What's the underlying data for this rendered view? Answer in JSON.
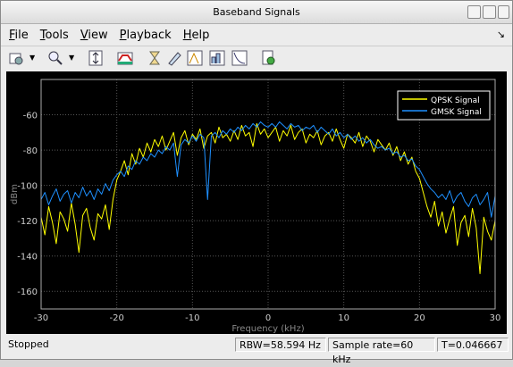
{
  "window": {
    "title": "Baseband Signals"
  },
  "menu": [
    "File",
    "Tools",
    "View",
    "Playback",
    "Help"
  ],
  "status": [
    "Stopped",
    "RBW=58.594 Hz",
    "Sample rate=60 kHz",
    "T=0.046667"
  ],
  "chart_data": {
    "type": "line",
    "xlabel": "Frequency (kHz)",
    "ylabel": "dBm",
    "x": [
      -30,
      -29.5,
      -29,
      -28.5,
      -28,
      -27.5,
      -27,
      -26.5,
      -26,
      -25.5,
      -25,
      -24.5,
      -24,
      -23.5,
      -23,
      -22.5,
      -22,
      -21.5,
      -21,
      -20.5,
      -20,
      -19.5,
      -19,
      -18.5,
      -18,
      -17.5,
      -17,
      -16.5,
      -16,
      -15.5,
      -15,
      -14.5,
      -14,
      -13.5,
      -13,
      -12.5,
      -12,
      -11.5,
      -11,
      -10.5,
      -10,
      -9.5,
      -9,
      -8.5,
      -8,
      -7.5,
      -7,
      -6.5,
      -6,
      -5.5,
      -5,
      -4.5,
      -4,
      -3.5,
      -3,
      -2.5,
      -2,
      -1.5,
      -1,
      -0.5,
      0,
      0.5,
      1,
      1.5,
      2,
      2.5,
      3,
      3.5,
      4,
      4.5,
      5,
      5.5,
      6,
      6.5,
      7,
      7.5,
      8,
      8.5,
      9,
      9.5,
      10,
      10.5,
      11,
      11.5,
      12,
      12.5,
      13,
      13.5,
      14,
      14.5,
      15,
      15.5,
      16,
      16.5,
      17,
      17.5,
      18,
      18.5,
      19,
      19.5,
      20,
      20.5,
      21,
      21.5,
      22,
      22.5,
      23,
      23.5,
      24,
      24.5,
      25,
      25.5,
      26,
      26.5,
      27,
      27.5,
      28,
      28.5,
      29,
      29.5,
      30
    ],
    "series": [
      {
        "name": "QPSK Signal",
        "color": "#ffff00",
        "values": [
          -118,
          -128,
          -112,
          -121,
          -133,
          -115,
          -119,
          -126,
          -110,
          -122,
          -138,
          -117,
          -113,
          -124,
          -131,
          -116,
          -119,
          -111,
          -125,
          -108,
          -97,
          -92,
          -86,
          -94,
          -82,
          -88,
          -79,
          -84,
          -76,
          -81,
          -74,
          -78,
          -72,
          -80,
          -75,
          -70,
          -83,
          -73,
          -69,
          -77,
          -71,
          -74,
          -68,
          -79,
          -72,
          -70,
          -76,
          -67,
          -73,
          -71,
          -75,
          -69,
          -74,
          -66,
          -72,
          -70,
          -78,
          -65,
          -71,
          -68,
          -73,
          -70,
          -67,
          -75,
          -69,
          -72,
          -66,
          -74,
          -70,
          -68,
          -76,
          -71,
          -73,
          -69,
          -77,
          -72,
          -70,
          -75,
          -68,
          -74,
          -79,
          -71,
          -73,
          -76,
          -70,
          -78,
          -72,
          -75,
          -81,
          -74,
          -77,
          -80,
          -76,
          -83,
          -78,
          -86,
          -81,
          -88,
          -84,
          -92,
          -96,
          -104,
          -112,
          -118,
          -109,
          -123,
          -115,
          -127,
          -119,
          -112,
          -134,
          -121,
          -117,
          -129,
          -113,
          -124,
          -150,
          -118,
          -126,
          -131,
          -120
        ]
      },
      {
        "name": "GMSK Signal",
        "color": "#1e90ff",
        "values": [
          -108,
          -104,
          -111,
          -106,
          -102,
          -109,
          -105,
          -103,
          -110,
          -104,
          -107,
          -101,
          -106,
          -103,
          -108,
          -102,
          -105,
          -99,
          -103,
          -97,
          -94,
          -92,
          -95,
          -89,
          -91,
          -86,
          -88,
          -84,
          -86,
          -82,
          -84,
          -80,
          -82,
          -78,
          -80,
          -76,
          -95,
          -77,
          -74,
          -76,
          -72,
          -75,
          -71,
          -73,
          -108,
          -72,
          -70,
          -73,
          -69,
          -71,
          -68,
          -70,
          -67,
          -69,
          -66,
          -68,
          -65,
          -67,
          -64,
          -66,
          -67,
          -65,
          -67,
          -64,
          -66,
          -68,
          -65,
          -67,
          -66,
          -69,
          -67,
          -68,
          -66,
          -70,
          -67,
          -69,
          -71,
          -68,
          -72,
          -70,
          -73,
          -71,
          -74,
          -72,
          -75,
          -73,
          -76,
          -74,
          -77,
          -79,
          -78,
          -80,
          -79,
          -82,
          -81,
          -84,
          -83,
          -86,
          -85,
          -89,
          -91,
          -95,
          -99,
          -102,
          -104,
          -107,
          -105,
          -108,
          -103,
          -110,
          -106,
          -104,
          -109,
          -112,
          -107,
          -105,
          -111,
          -108,
          -104,
          -118,
          -106
        ]
      }
    ],
    "xlim": [
      -30,
      30
    ],
    "ylim": [
      -170,
      -40
    ],
    "xticks": [
      -30,
      -20,
      -10,
      0,
      10,
      20,
      30
    ],
    "yticks": [
      -160,
      -140,
      -120,
      -100,
      -80,
      -60
    ],
    "grid": true,
    "legend": "upper right"
  }
}
